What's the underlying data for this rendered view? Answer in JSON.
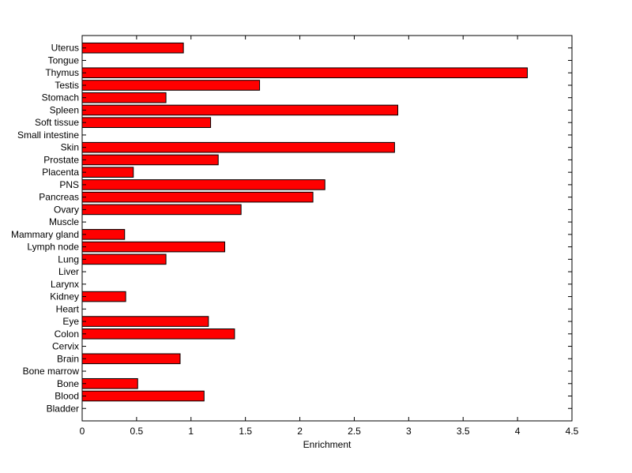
{
  "chart_data": {
    "type": "bar",
    "orientation": "horizontal",
    "title": "",
    "xlabel": "Enrichment",
    "ylabel": "",
    "xlim": [
      0,
      4.5
    ],
    "xticks": [
      "0",
      "0.5",
      "1",
      "1.5",
      "2",
      "2.5",
      "3",
      "3.5",
      "4",
      "4.5"
    ],
    "grid": false,
    "bar_color": "#ff0000",
    "categories": [
      "Bladder",
      "Blood",
      "Bone",
      "Bone marrow",
      "Brain",
      "Cervix",
      "Colon",
      "Eye",
      "Heart",
      "Kidney",
      "Larynx",
      "Liver",
      "Lung",
      "Lymph node",
      "Mammary gland",
      "Muscle",
      "Ovary",
      "Pancreas",
      "PNS",
      "Placenta",
      "Prostate",
      "Skin",
      "Small intestine",
      "Soft tissue",
      "Spleen",
      "Stomach",
      "Testis",
      "Thymus",
      "Tongue",
      "Uterus"
    ],
    "values": [
      0,
      1.12,
      0.51,
      0,
      0.9,
      0,
      1.4,
      1.16,
      0,
      0.4,
      0,
      0,
      0.77,
      1.31,
      0.39,
      0,
      1.46,
      2.12,
      2.23,
      0.47,
      1.25,
      2.87,
      0,
      1.18,
      2.9,
      0.77,
      1.63,
      4.09,
      0,
      0.93
    ]
  }
}
